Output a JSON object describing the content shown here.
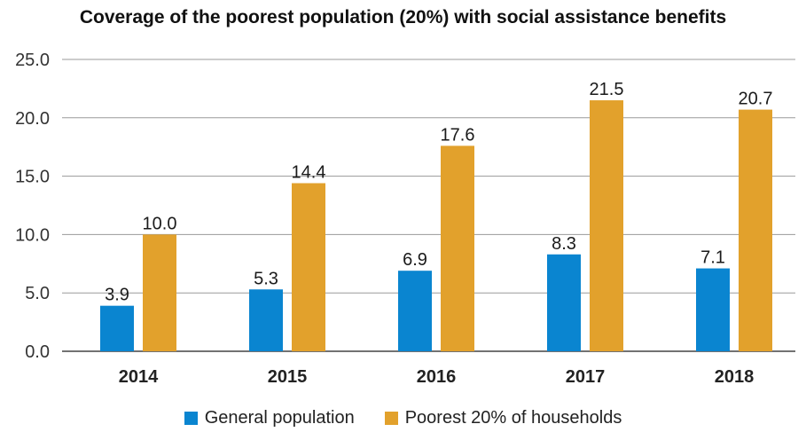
{
  "chart_data": {
    "type": "bar",
    "title": "Coverage of the poorest population (20%) with social assistance benefits",
    "categories": [
      "2014",
      "2015",
      "2016",
      "2017",
      "2018"
    ],
    "series": [
      {
        "name": "General population",
        "color": "#0a85d0",
        "values": [
          3.9,
          5.3,
          6.9,
          8.3,
          7.1
        ],
        "labels": [
          "3.9",
          "5.3",
          "6.9",
          "8.3",
          "7.1"
        ]
      },
      {
        "name": "Poorest 20% of households",
        "color": "#e2a12c",
        "values": [
          10.0,
          14.4,
          17.6,
          21.5,
          20.7
        ],
        "labels": [
          "10.0",
          "14.4",
          "17.6",
          "21.5",
          "20.7"
        ]
      }
    ],
    "ylim": [
      0,
      25
    ],
    "yticks": [
      "0.0",
      "5.0",
      "10.0",
      "15.0",
      "20.0",
      "25.0"
    ],
    "xlabel": "",
    "ylabel": "",
    "grid": true,
    "legend_position": "bottom"
  }
}
